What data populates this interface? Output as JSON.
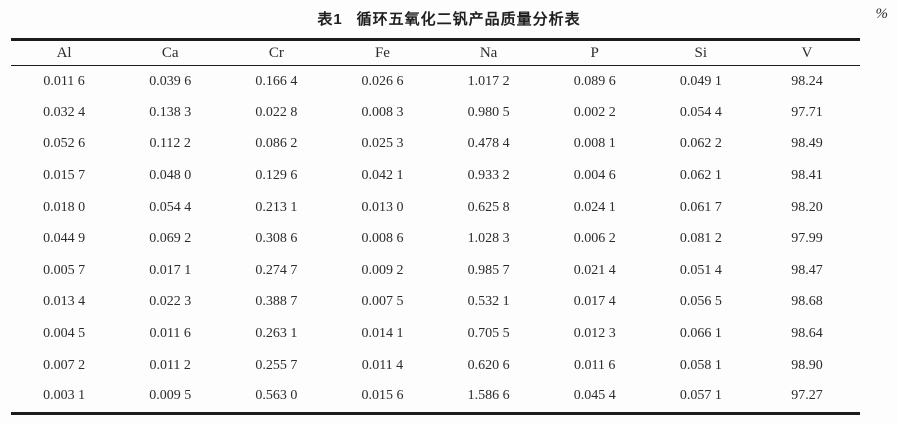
{
  "page": {
    "unit_label": "%"
  },
  "table": {
    "title_label": "表1",
    "title_text": "循环五氧化二钒产品质量分析表",
    "columns": [
      "Al",
      "Ca",
      "Cr",
      "Fe",
      "Na",
      "P",
      "Si",
      "V"
    ],
    "rows": [
      [
        "0.011 6",
        "0.039 6",
        "0.166 4",
        "0.026 6",
        "1.017 2",
        "0.089 6",
        "0.049 1",
        "98.24"
      ],
      [
        "0.032 4",
        "0.138 3",
        "0.022 8",
        "0.008 3",
        "0.980 5",
        "0.002 2",
        "0.054 4",
        "97.71"
      ],
      [
        "0.052 6",
        "0.112 2",
        "0.086 2",
        "0.025 3",
        "0.478 4",
        "0.008 1",
        "0.062 2",
        "98.49"
      ],
      [
        "0.015 7",
        "0.048 0",
        "0.129 6",
        "0.042 1",
        "0.933 2",
        "0.004 6",
        "0.062 1",
        "98.41"
      ],
      [
        "0.018 0",
        "0.054 4",
        "0.213 1",
        "0.013 0",
        "0.625 8",
        "0.024 1",
        "0.061 7",
        "98.20"
      ],
      [
        "0.044 9",
        "0.069 2",
        "0.308 6",
        "0.008 6",
        "1.028 3",
        "0.006 2",
        "0.081 2",
        "97.99"
      ],
      [
        "0.005 7",
        "0.017 1",
        "0.274 7",
        "0.009 2",
        "0.985 7",
        "0.021 4",
        "0.051 4",
        "98.47"
      ],
      [
        "0.013 4",
        "0.022 3",
        "0.388 7",
        "0.007 5",
        "0.532 1",
        "0.017 4",
        "0.056 5",
        "98.68"
      ],
      [
        "0.004 5",
        "0.011 6",
        "0.263 1",
        "0.014 1",
        "0.705 5",
        "0.012 3",
        "0.066 1",
        "98.64"
      ],
      [
        "0.007 2",
        "0.011 2",
        "0.255 7",
        "0.011 4",
        "0.620 6",
        "0.011 6",
        "0.058 1",
        "98.90"
      ],
      [
        "0.003 1",
        "0.009 5",
        "0.563 0",
        "0.015 6",
        "1.586 6",
        "0.045 4",
        "0.057 1",
        "97.27"
      ]
    ]
  },
  "colors": {
    "background": "#fdfdfd",
    "rule": "#1c1c1c",
    "text": "#2b2b2b"
  }
}
